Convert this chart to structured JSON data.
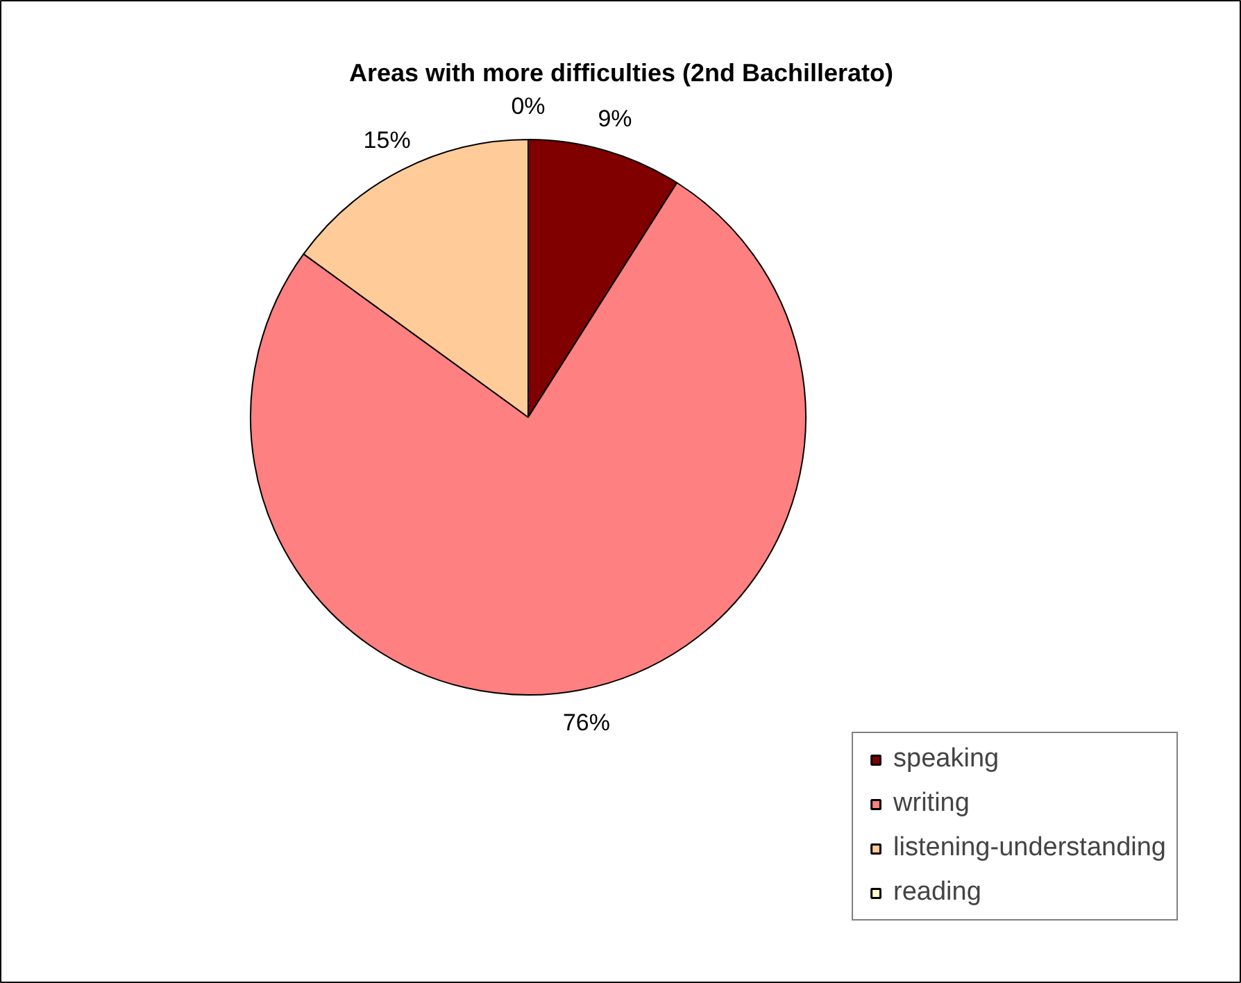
{
  "chart_data": {
    "type": "pie",
    "title": "Areas with more difficulties (2nd Bachillerato)",
    "categories": [
      "speaking",
      "writing",
      "listening-understanding",
      "reading"
    ],
    "values": [
      9,
      76,
      15,
      0
    ],
    "colors": [
      "#800000",
      "#ff8080",
      "#ffcc99",
      "#ffffcc"
    ],
    "value_labels": [
      "9%",
      "76%",
      "15%",
      "0%"
    ],
    "legend": "bottom right"
  }
}
